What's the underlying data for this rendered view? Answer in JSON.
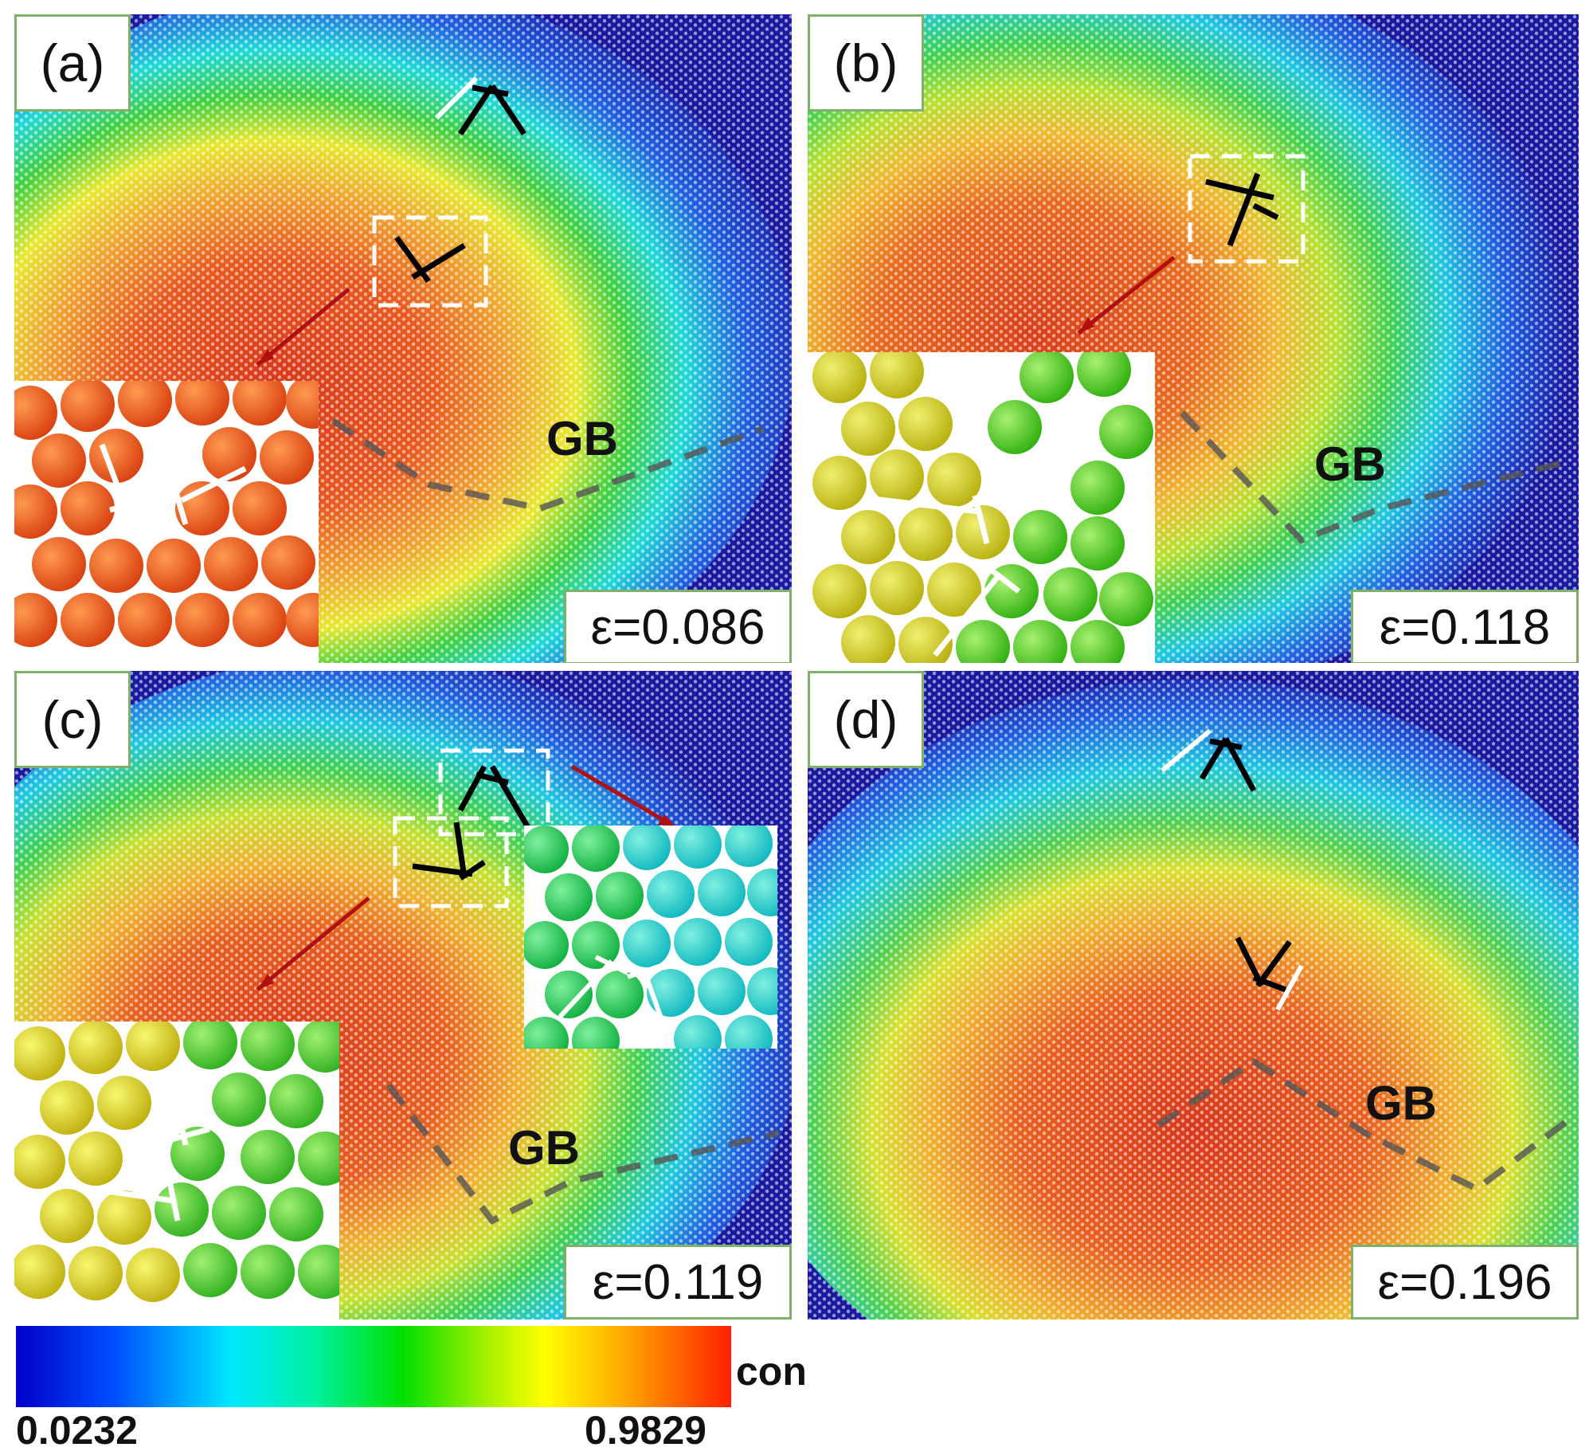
{
  "panels": [
    {
      "label": "(a)",
      "strain": "ε=0.086",
      "gb": "GB"
    },
    {
      "label": "(b)",
      "strain": "ε=0.118",
      "gb": "GB"
    },
    {
      "label": "(c)",
      "strain": "ε=0.119",
      "gb": "GB"
    },
    {
      "label": "(d)",
      "strain": "ε=0.196",
      "gb": "GB"
    }
  ],
  "colorbar": {
    "title": "con",
    "min_label": "0.0232",
    "max_label": "0.9829",
    "colors": [
      "#0000c8",
      "#00e8ff",
      "#00e000",
      "#ffff00",
      "#ff2000"
    ]
  },
  "colors": {
    "label_border": "#7fb069",
    "dislocation_symbol": "#000000",
    "burgers_circuit": "#ffffff",
    "pointer_arrow": "#b01010"
  }
}
